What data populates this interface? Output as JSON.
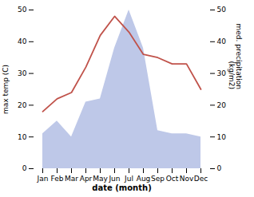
{
  "chart_data": {
    "type": "line",
    "xlabel": "date (month)",
    "ylabel": "max temp (C)",
    "y2label": "med. precipitation\n(kg/m2)",
    "categories": [
      "Jan",
      "Feb",
      "Mar",
      "Apr",
      "May",
      "Jun",
      "Jul",
      "Aug",
      "Sep",
      "Oct",
      "Nov",
      "Dec"
    ],
    "series": [
      {
        "type": "line",
        "color": "#c0524a",
        "values": [
          18,
          22,
          24,
          32,
          42,
          48,
          43,
          36,
          35,
          33,
          33,
          25
        ]
      },
      {
        "type": "area",
        "color": "#bec8e8",
        "axis": "y2",
        "values": [
          11,
          15,
          10,
          21,
          22,
          38,
          50,
          38,
          12,
          11,
          11,
          10
        ]
      }
    ],
    "ylim": [
      0,
      50
    ],
    "yticks": [
      0,
      10,
      20,
      30,
      40,
      50
    ],
    "y2lim": [
      0,
      50
    ],
    "y2ticks": [
      0,
      10,
      20,
      30,
      40,
      50
    ],
    "grid": false
  }
}
